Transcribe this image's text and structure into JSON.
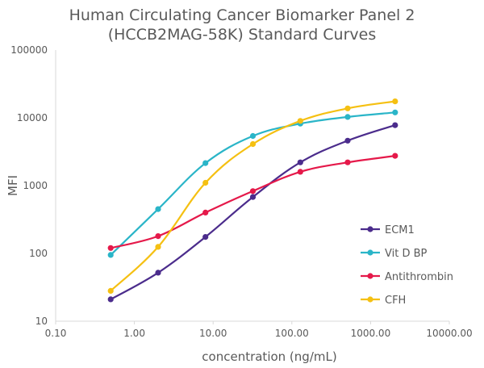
{
  "chart_data": {
    "type": "line",
    "title_lines": [
      "Human Circulating Cancer Biomarker Panel 2",
      "(HCCB2MAG-58K) Standard Curves"
    ],
    "xlabel": "concentration (ng/mL)",
    "ylabel": "MFI",
    "x_scale": "log",
    "y_scale": "log",
    "xlim": [
      0.1,
      10000
    ],
    "ylim": [
      10,
      100000
    ],
    "x_ticks": [
      "0.10",
      "1.00",
      "10.00",
      "100.00",
      "1000.00",
      "10000.00"
    ],
    "y_ticks": [
      "10",
      "100",
      "1000",
      "10000",
      "100000"
    ],
    "grid": false,
    "legend_position": "right",
    "series": [
      {
        "name": "ECM1",
        "color": "#4b2c8c",
        "x": [
          0.5,
          2,
          8,
          32,
          128,
          512,
          2048
        ],
        "y": [
          21,
          52,
          175,
          680,
          2200,
          4600,
          7800
        ]
      },
      {
        "name": "Vit D BP",
        "color": "#2ab5c8",
        "x": [
          0.5,
          2,
          8,
          32,
          128,
          512,
          2048
        ],
        "y": [
          95,
          450,
          2150,
          5400,
          8200,
          10300,
          12000
        ]
      },
      {
        "name": "Antithrombin",
        "color": "#e5194a",
        "x": [
          0.5,
          2,
          8,
          32,
          128,
          512,
          2048
        ],
        "y": [
          120,
          180,
          400,
          830,
          1600,
          2200,
          2750
        ]
      },
      {
        "name": "CFH",
        "color": "#f5c012",
        "x": [
          0.5,
          2,
          8,
          32,
          128,
          512,
          2048
        ],
        "y": [
          28,
          125,
          1100,
          4100,
          9000,
          13800,
          17500
        ]
      }
    ]
  }
}
